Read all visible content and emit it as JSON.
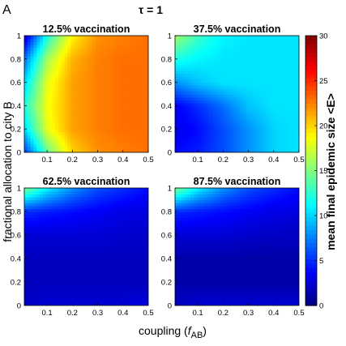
{
  "panel_letter": "A",
  "figure_title": "τ = 1",
  "xlabel_main": "coupling (",
  "xlabel_sym": "f",
  "xlabel_sub": "AB",
  "xlabel_close": ")",
  "ylabel": "fractional allocation to city B",
  "colorbar": {
    "label": "mean final epidemic size <E>",
    "ticks": [
      "0",
      "5",
      "10",
      "15",
      "20",
      "25",
      "30"
    ],
    "range": [
      0,
      30
    ],
    "colormap": "jet"
  },
  "chart_data": [
    {
      "type": "heatmap",
      "title": "12.5% vaccination",
      "xlim": [
        0.01,
        0.5
      ],
      "ylim": [
        0,
        1
      ],
      "xticks": [
        "0.1",
        "0.2",
        "0.3",
        "0.4",
        "0.5"
      ],
      "yticks": [
        "0",
        "0.2",
        "0.4",
        "0.6",
        "0.8",
        "1"
      ],
      "x": [
        0.01,
        0.1,
        0.2,
        0.3,
        0.4,
        0.5
      ],
      "y": [
        0,
        0.2,
        0.4,
        0.6,
        0.8,
        1
      ],
      "z": [
        [
          5,
          14,
          20,
          22,
          22.5,
          23
        ],
        [
          10,
          18,
          21.5,
          22.5,
          23,
          23
        ],
        [
          12,
          18.5,
          21.5,
          22.5,
          23,
          23
        ],
        [
          10,
          18,
          21.5,
          22.5,
          23,
          23
        ],
        [
          7,
          16,
          21,
          22.5,
          23,
          23
        ],
        [
          2,
          12,
          19,
          22,
          22.5,
          23
        ]
      ]
    },
    {
      "type": "heatmap",
      "title": "37.5% vaccination",
      "xlim": [
        0.01,
        0.5
      ],
      "ylim": [
        0,
        1
      ],
      "xticks": [
        "0.1",
        "0.2",
        "0.3",
        "0.4",
        "0.5"
      ],
      "yticks": [
        "0",
        "0.2",
        "0.4",
        "0.6",
        "0.8",
        "1"
      ],
      "x": [
        0.01,
        0.1,
        0.2,
        0.3,
        0.4,
        0.5
      ],
      "y": [
        0,
        0.2,
        0.4,
        0.6,
        0.8,
        1
      ],
      "z": [
        [
          4,
          4.5,
          6,
          8,
          10,
          10.5
        ],
        [
          3,
          4,
          6,
          8,
          10,
          10.5
        ],
        [
          3.5,
          5,
          7,
          9.5,
          10.5,
          10.5
        ],
        [
          8,
          9.5,
          10.5,
          10.5,
          10.5,
          10.5
        ],
        [
          12,
          11,
          10.5,
          10.5,
          10.5,
          10.5
        ],
        [
          16,
          13,
          11,
          10.5,
          10.5,
          10.5
        ]
      ]
    },
    {
      "type": "heatmap",
      "title": "62.5% vaccination",
      "xlim": [
        0.01,
        0.5
      ],
      "ylim": [
        0,
        1
      ],
      "xticks": [
        "0.1",
        "0.2",
        "0.3",
        "0.4",
        "0.5"
      ],
      "yticks": [
        "0",
        "0.2",
        "0.4",
        "0.6",
        "0.8",
        "1"
      ],
      "x": [
        0.01,
        0.1,
        0.2,
        0.3,
        0.4,
        0.5
      ],
      "y": [
        0,
        0.2,
        0.4,
        0.6,
        0.8,
        1
      ],
      "z": [
        [
          2,
          2.5,
          2.5,
          2.5,
          2.5,
          3
        ],
        [
          1.8,
          1.8,
          1.8,
          1.8,
          1.8,
          1.8
        ],
        [
          1.8,
          1.8,
          1.8,
          1.8,
          1.8,
          1.8
        ],
        [
          2.5,
          2.5,
          2.5,
          2.5,
          2.3,
          2.2
        ],
        [
          5,
          4.5,
          4,
          3.5,
          3,
          2.8
        ],
        [
          15,
          11,
          8,
          6,
          5,
          4
        ]
      ]
    },
    {
      "type": "heatmap",
      "title": "87.5% vaccination",
      "xlim": [
        0.01,
        0.5
      ],
      "ylim": [
        0,
        1
      ],
      "xticks": [
        "0.1",
        "0.2",
        "0.3",
        "0.4",
        "0.5"
      ],
      "yticks": [
        "0",
        "0.2",
        "0.4",
        "0.6",
        "0.8",
        "1"
      ],
      "x": [
        0.01,
        0.1,
        0.2,
        0.3,
        0.4,
        0.5
      ],
      "y": [
        0,
        0.2,
        0.4,
        0.6,
        0.8,
        1
      ],
      "z": [
        [
          2,
          2.5,
          2.5,
          2.5,
          2.5,
          2.5
        ],
        [
          1.2,
          1.2,
          1.2,
          1.2,
          1.2,
          1.2
        ],
        [
          1.2,
          1.2,
          1.2,
          1.2,
          1.2,
          1.2
        ],
        [
          2.5,
          2.5,
          2.5,
          2.2,
          2,
          2
        ],
        [
          5,
          4.5,
          4,
          3.5,
          3,
          2.8
        ],
        [
          15,
          11,
          8,
          6,
          5,
          4
        ]
      ]
    }
  ]
}
